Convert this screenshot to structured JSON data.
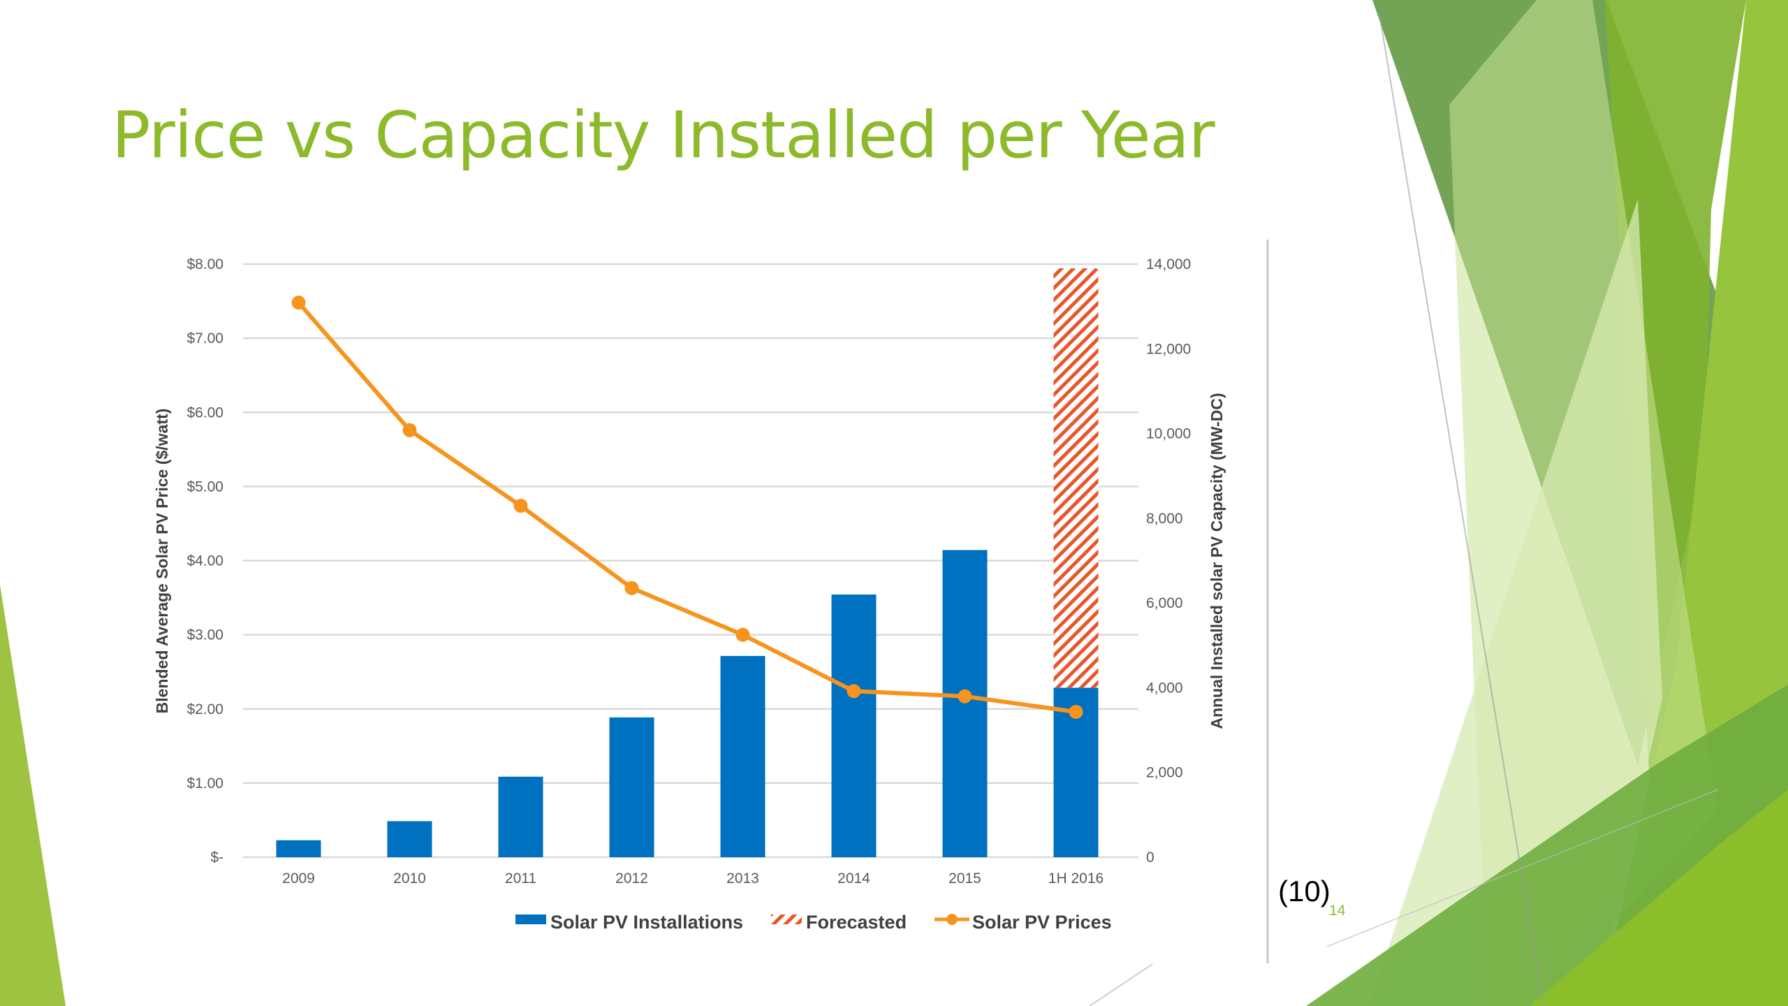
{
  "slide": {
    "title": "Price vs Capacity Installed per Year",
    "reference": "(10)",
    "slide_number": "14",
    "colors": {
      "title": "#8CBA2B",
      "bars": "#0070C0",
      "forecast": "#E8562A",
      "line": "#F7941D"
    }
  },
  "chart_data": {
    "type": "bar",
    "title": "",
    "categories": [
      "2009",
      "2010",
      "2011",
      "2012",
      "2013",
      "2014",
      "2015",
      "1H 2016"
    ],
    "series": [
      {
        "name": "Solar PV Installations",
        "type": "bar",
        "axis": "right",
        "stacked": true,
        "values": [
          400,
          850,
          1900,
          3300,
          4750,
          6200,
          7250,
          4000
        ]
      },
      {
        "name": "Forecasted",
        "type": "bar",
        "axis": "right",
        "stacked": true,
        "pattern": "hatched",
        "values": [
          0,
          0,
          0,
          0,
          0,
          0,
          0,
          9900
        ]
      },
      {
        "name": "Solar PV Prices",
        "type": "line",
        "axis": "left",
        "marker": "circle",
        "values": [
          7.48,
          5.76,
          4.74,
          3.63,
          3.0,
          2.24,
          2.17,
          1.96
        ]
      }
    ],
    "ylabel": "Blended Average Solar PV Price ($/watt)",
    "ylim": [
      0,
      8
    ],
    "yticks": [
      "$-",
      "$1.00",
      "$2.00",
      "$3.00",
      "$4.00",
      "$5.00",
      "$6.00",
      "$7.00",
      "$8.00"
    ],
    "y2label": "Annual Installed solar PV Capacity (MW-DC)",
    "y2lim": [
      0,
      14000
    ],
    "y2ticks": [
      "0",
      "2,000",
      "4,000",
      "6,000",
      "8,000",
      "10,000",
      "12,000",
      "14,000"
    ],
    "xlabel": "",
    "grid": true,
    "legend": {
      "position": "bottom",
      "entries": [
        "Solar PV Installations",
        "Forecasted",
        "Solar PV Prices"
      ]
    }
  }
}
